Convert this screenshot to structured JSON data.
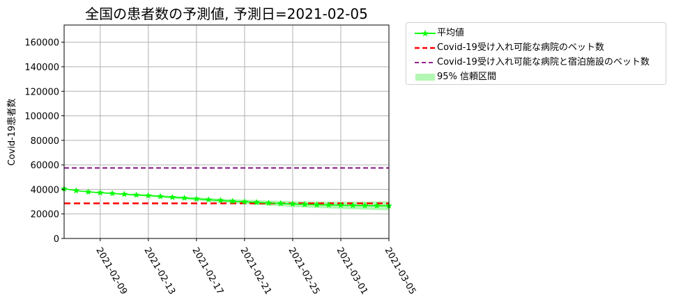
{
  "chart_data": {
    "type": "line",
    "title": "全国の患者数の予測値, 予測日=2021-02-05",
    "xlabel": "",
    "ylabel": "Covid-19患者数",
    "x": [
      "2021-02-06",
      "2021-02-07",
      "2021-02-08",
      "2021-02-09",
      "2021-02-10",
      "2021-02-11",
      "2021-02-12",
      "2021-02-13",
      "2021-02-14",
      "2021-02-15",
      "2021-02-16",
      "2021-02-17",
      "2021-02-18",
      "2021-02-19",
      "2021-02-20",
      "2021-02-21",
      "2021-02-22",
      "2021-02-23",
      "2021-02-24",
      "2021-02-25",
      "2021-02-26",
      "2021-02-27",
      "2021-02-28",
      "2021-03-01",
      "2021-03-02",
      "2021-03-03",
      "2021-03-04",
      "2021-03-05"
    ],
    "x_range": [
      "2021-02-06",
      "2021-03-05"
    ],
    "x_ticks": [
      "2021-02-09",
      "2021-02-13",
      "2021-02-17",
      "2021-02-21",
      "2021-02-25",
      "2021-03-01",
      "2021-03-05"
    ],
    "ylim": [
      0,
      174000
    ],
    "y_ticks": [
      0,
      20000,
      40000,
      60000,
      80000,
      100000,
      120000,
      140000,
      160000
    ],
    "grid": true,
    "legend_position": "outside-upper-right",
    "series": [
      {
        "name": "平均値",
        "style": "line-star-markers",
        "color": "#00ff00",
        "values": [
          40500,
          39000,
          38000,
          37300,
          36700,
          36100,
          35500,
          35000,
          34300,
          33600,
          33000,
          32300,
          31600,
          31000,
          30400,
          29900,
          29400,
          28900,
          28500,
          28100,
          27800,
          27500,
          27300,
          27100,
          26900,
          26800,
          26700,
          26600
        ]
      },
      {
        "name": "Covid-19受け入れ可能な病院のベット数",
        "style": "dashed",
        "color": "#ff0000",
        "value": 28600
      },
      {
        "name": "Covid-19受け入れ可能な病院と宿泊施設のベット数",
        "style": "dashed",
        "color": "#800080",
        "value": 57500
      },
      {
        "name": "95% 信頼区間",
        "style": "band",
        "color": "#b2f7b2",
        "lower": [
          40300,
          38700,
          37600,
          36800,
          36100,
          35400,
          34700,
          34100,
          33300,
          32500,
          31800,
          31000,
          30200,
          29500,
          28800,
          28100,
          27500,
          26900,
          26300,
          25800,
          25300,
          24900,
          24500,
          24100,
          23800,
          23500,
          23200,
          22900
        ],
        "upper": [
          40700,
          39300,
          38400,
          37800,
          37300,
          36800,
          36300,
          35900,
          35300,
          34700,
          34200,
          33600,
          33000,
          32500,
          32000,
          31700,
          31300,
          30900,
          30700,
          30400,
          30300,
          30100,
          30100,
          30100,
          30000,
          30100,
          30200,
          30300
        ]
      }
    ]
  }
}
